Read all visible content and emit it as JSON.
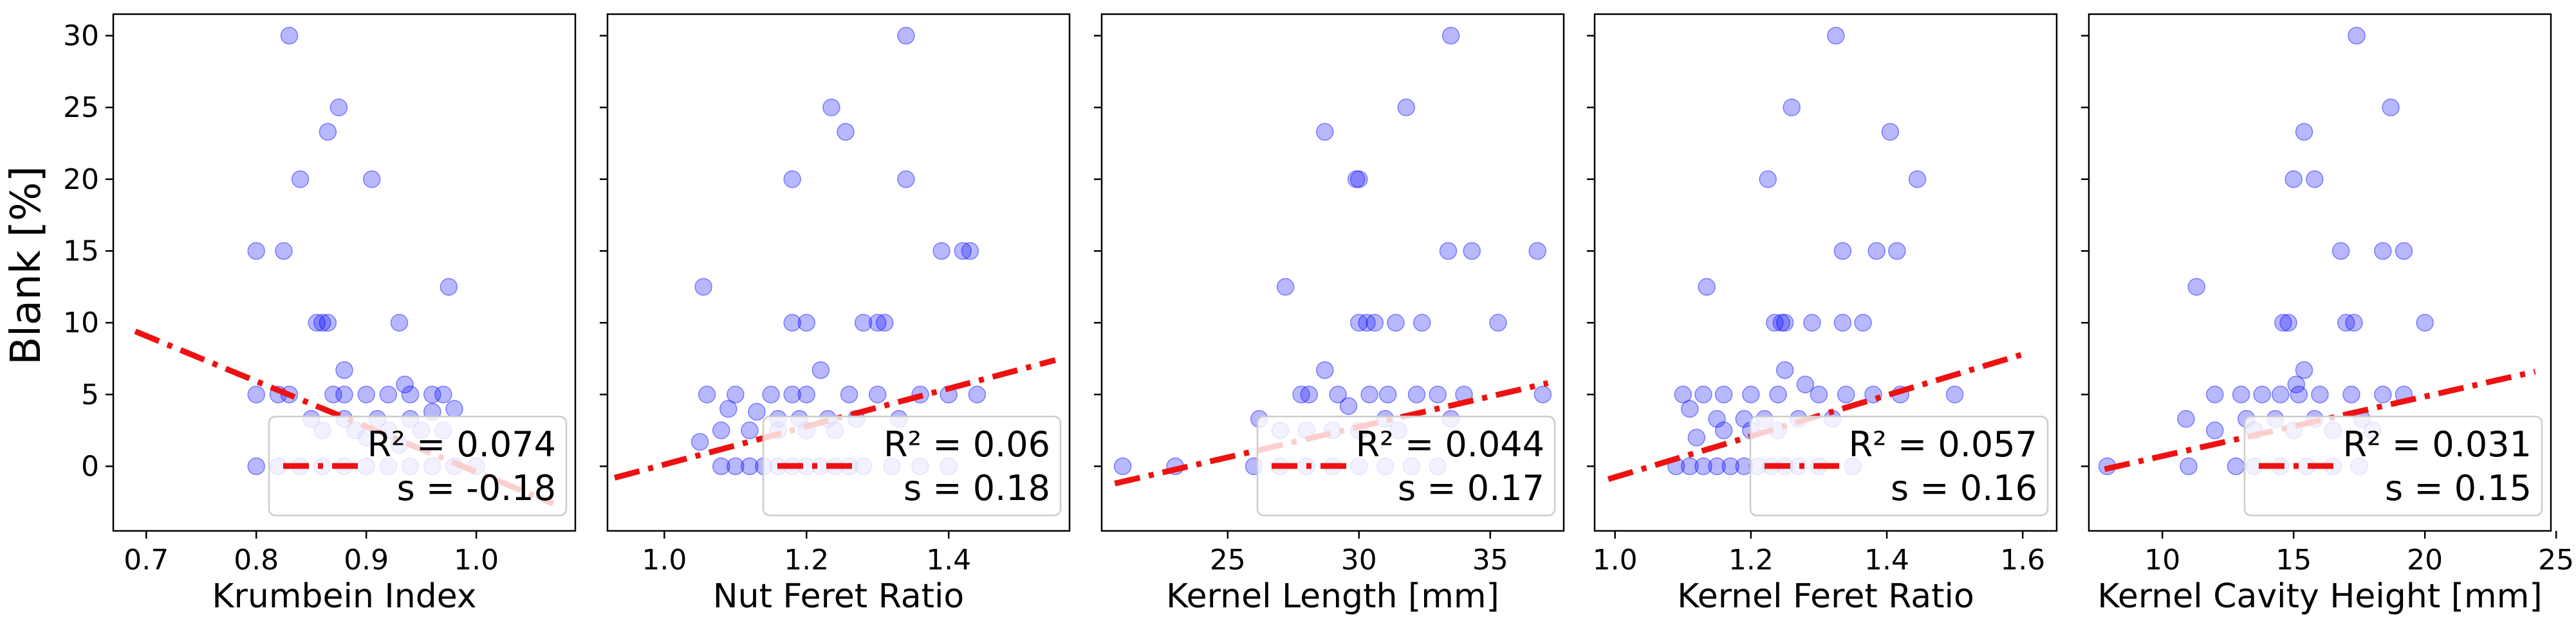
{
  "chart_data": [
    {
      "type": "scatter",
      "xlabel": "Krumbein Index",
      "ylabel": "Blank [%]",
      "xlim": [
        0.67,
        1.09
      ],
      "ylim": [
        -4.5,
        31.5
      ],
      "xticks": [
        0.7,
        0.8,
        0.9,
        1.0
      ],
      "xtick_labels": [
        "0.7",
        "0.8",
        "0.9",
        "1.0"
      ],
      "yticks": [
        0,
        5,
        10,
        15,
        20,
        25,
        30
      ],
      "ytick_labels": [
        "0",
        "5",
        "10",
        "15",
        "20",
        "25",
        "30"
      ],
      "points": [
        [
          0.83,
          30
        ],
        [
          0.875,
          25
        ],
        [
          0.865,
          23.3
        ],
        [
          0.84,
          20
        ],
        [
          0.905,
          20
        ],
        [
          0.8,
          15
        ],
        [
          0.825,
          15
        ],
        [
          0.975,
          12.5
        ],
        [
          0.855,
          10
        ],
        [
          0.86,
          10
        ],
        [
          0.865,
          10
        ],
        [
          0.93,
          10
        ],
        [
          0.88,
          6.7
        ],
        [
          0.8,
          5
        ],
        [
          0.82,
          5
        ],
        [
          0.83,
          5
        ],
        [
          0.87,
          5
        ],
        [
          0.88,
          5
        ],
        [
          0.9,
          5
        ],
        [
          0.92,
          5
        ],
        [
          0.94,
          5
        ],
        [
          0.96,
          5
        ],
        [
          0.97,
          5
        ],
        [
          0.935,
          5.7
        ],
        [
          0.85,
          3.3
        ],
        [
          0.88,
          3.3
        ],
        [
          0.91,
          3.3
        ],
        [
          0.94,
          3.3
        ],
        [
          0.96,
          3.8
        ],
        [
          0.98,
          4
        ],
        [
          0.86,
          2.5
        ],
        [
          0.89,
          2.5
        ],
        [
          0.92,
          2.5
        ],
        [
          0.95,
          2.5
        ],
        [
          0.97,
          2.5
        ],
        [
          0.9,
          2
        ],
        [
          0.93,
          1.5
        ],
        [
          0.8,
          0
        ],
        [
          0.82,
          0
        ],
        [
          0.84,
          0
        ],
        [
          0.86,
          0
        ],
        [
          0.88,
          0
        ],
        [
          0.9,
          0
        ],
        [
          0.92,
          0
        ],
        [
          0.94,
          0
        ],
        [
          0.96,
          0
        ],
        [
          0.98,
          0
        ],
        [
          1.0,
          0
        ]
      ],
      "fit_line": {
        "x": [
          0.69,
          1.07
        ],
        "y": [
          9.4,
          -2.6
        ]
      },
      "legend": {
        "r2": "R² = 0.074",
        "s": "s   = -0.18",
        "placement": "lower-right"
      }
    },
    {
      "type": "scatter",
      "xlabel": "Nut Feret Ratio",
      "ylabel": "",
      "xlim": [
        0.92,
        1.57
      ],
      "ylim": [
        -4.5,
        31.5
      ],
      "xticks": [
        1.0,
        1.2,
        1.4
      ],
      "xtick_labels": [
        "1.0",
        "1.2",
        "1.4"
      ],
      "yticks": [
        0,
        5,
        10,
        15,
        20,
        25,
        30
      ],
      "ytick_labels": [],
      "points": [
        [
          1.34,
          30
        ],
        [
          1.235,
          25
        ],
        [
          1.255,
          23.3
        ],
        [
          1.18,
          20
        ],
        [
          1.34,
          20
        ],
        [
          1.39,
          15
        ],
        [
          1.42,
          15
        ],
        [
          1.43,
          15
        ],
        [
          1.055,
          12.5
        ],
        [
          1.18,
          10
        ],
        [
          1.2,
          10
        ],
        [
          1.28,
          10
        ],
        [
          1.3,
          10
        ],
        [
          1.31,
          10
        ],
        [
          1.22,
          6.7
        ],
        [
          1.06,
          5
        ],
        [
          1.1,
          5
        ],
        [
          1.15,
          5
        ],
        [
          1.18,
          5
        ],
        [
          1.2,
          5
        ],
        [
          1.26,
          5
        ],
        [
          1.3,
          5
        ],
        [
          1.36,
          5
        ],
        [
          1.4,
          5
        ],
        [
          1.44,
          5
        ],
        [
          1.09,
          4
        ],
        [
          1.13,
          3.8
        ],
        [
          1.16,
          3.3
        ],
        [
          1.19,
          3.3
        ],
        [
          1.23,
          3.3
        ],
        [
          1.27,
          3.3
        ],
        [
          1.33,
          3.3
        ],
        [
          1.08,
          2.5
        ],
        [
          1.12,
          2.5
        ],
        [
          1.16,
          2.5
        ],
        [
          1.2,
          2.5
        ],
        [
          1.24,
          2.5
        ],
        [
          1.05,
          1.7
        ],
        [
          1.08,
          0
        ],
        [
          1.1,
          0
        ],
        [
          1.12,
          0
        ],
        [
          1.14,
          0
        ],
        [
          1.16,
          0
        ],
        [
          1.18,
          0
        ],
        [
          1.2,
          0
        ],
        [
          1.22,
          0
        ],
        [
          1.24,
          0
        ],
        [
          1.26,
          0
        ],
        [
          1.28,
          0
        ],
        [
          1.32,
          0
        ],
        [
          1.36,
          0
        ],
        [
          1.4,
          0
        ]
      ],
      "fit_line": {
        "x": [
          0.93,
          1.55
        ],
        "y": [
          -0.8,
          7.4
        ]
      },
      "legend": {
        "r2": "R² = 0.06",
        "s": "s   = 0.18",
        "placement": "lower-right"
      }
    },
    {
      "type": "scatter",
      "xlabel": "Kernel Length [mm]",
      "ylabel": "",
      "xlim": [
        20.2,
        37.8
      ],
      "ylim": [
        -4.5,
        31.5
      ],
      "xticks": [
        25,
        30,
        35
      ],
      "xtick_labels": [
        "25",
        "30",
        "35"
      ],
      "yticks": [
        0,
        5,
        10,
        15,
        20,
        25,
        30
      ],
      "ytick_labels": [],
      "points": [
        [
          33.5,
          30
        ],
        [
          31.8,
          25
        ],
        [
          28.7,
          23.3
        ],
        [
          29.9,
          20
        ],
        [
          30.0,
          20
        ],
        [
          33.4,
          15
        ],
        [
          34.3,
          15
        ],
        [
          36.8,
          15
        ],
        [
          27.2,
          12.5
        ],
        [
          30.0,
          10
        ],
        [
          30.3,
          10
        ],
        [
          30.6,
          10
        ],
        [
          31.4,
          10
        ],
        [
          32.4,
          10
        ],
        [
          35.3,
          10
        ],
        [
          28.7,
          6.7
        ],
        [
          27.8,
          5
        ],
        [
          28.1,
          5
        ],
        [
          29.2,
          5
        ],
        [
          30.4,
          5
        ],
        [
          31.1,
          5
        ],
        [
          32.2,
          5
        ],
        [
          33.0,
          5
        ],
        [
          34.0,
          5
        ],
        [
          37.0,
          5
        ],
        [
          29.6,
          4.2
        ],
        [
          31.0,
          3.3
        ],
        [
          33.5,
          3.3
        ],
        [
          26.2,
          3.3
        ],
        [
          27.0,
          2.5
        ],
        [
          28.0,
          2.5
        ],
        [
          29.0,
          2.5
        ],
        [
          30.0,
          2.5
        ],
        [
          31.5,
          2.5
        ],
        [
          21.0,
          0
        ],
        [
          23.0,
          0
        ],
        [
          26.0,
          0
        ],
        [
          27.0,
          0
        ],
        [
          28.0,
          0
        ],
        [
          29.0,
          0
        ],
        [
          30.0,
          0
        ],
        [
          31.0,
          0
        ],
        [
          32.0,
          0
        ],
        [
          33.0,
          0
        ]
      ],
      "fit_line": {
        "x": [
          20.7,
          37.2
        ],
        "y": [
          -1.2,
          5.8
        ]
      },
      "legend": {
        "r2": "R² = 0.044",
        "s": "s   = 0.17",
        "placement": "lower-right"
      }
    },
    {
      "type": "scatter",
      "xlabel": "Kernel Feret Ratio",
      "ylabel": "",
      "xlim": [
        0.97,
        1.65
      ],
      "ylim": [
        -4.5,
        31.5
      ],
      "xticks": [
        1.0,
        1.2,
        1.4,
        1.6
      ],
      "xtick_labels": [
        "1.0",
        "1.2",
        "1.4",
        "1.6"
      ],
      "yticks": [
        0,
        5,
        10,
        15,
        20,
        25,
        30
      ],
      "ytick_labels": [],
      "points": [
        [
          1.325,
          30
        ],
        [
          1.26,
          25
        ],
        [
          1.405,
          23.3
        ],
        [
          1.225,
          20
        ],
        [
          1.445,
          20
        ],
        [
          1.335,
          15
        ],
        [
          1.385,
          15
        ],
        [
          1.415,
          15
        ],
        [
          1.135,
          12.5
        ],
        [
          1.235,
          10
        ],
        [
          1.245,
          10
        ],
        [
          1.25,
          10
        ],
        [
          1.29,
          10
        ],
        [
          1.335,
          10
        ],
        [
          1.365,
          10
        ],
        [
          1.25,
          6.7
        ],
        [
          1.1,
          5
        ],
        [
          1.13,
          5
        ],
        [
          1.16,
          5
        ],
        [
          1.2,
          5
        ],
        [
          1.24,
          5
        ],
        [
          1.3,
          5
        ],
        [
          1.34,
          5
        ],
        [
          1.38,
          5
        ],
        [
          1.42,
          5
        ],
        [
          1.5,
          5
        ],
        [
          1.28,
          5.7
        ],
        [
          1.11,
          4
        ],
        [
          1.15,
          3.3
        ],
        [
          1.19,
          3.3
        ],
        [
          1.22,
          3.3
        ],
        [
          1.27,
          3.3
        ],
        [
          1.32,
          3.3
        ],
        [
          1.12,
          2
        ],
        [
          1.16,
          2.5
        ],
        [
          1.2,
          2.5
        ],
        [
          1.24,
          2.5
        ],
        [
          1.09,
          0
        ],
        [
          1.11,
          0
        ],
        [
          1.13,
          0
        ],
        [
          1.15,
          0
        ],
        [
          1.17,
          0
        ],
        [
          1.19,
          0
        ],
        [
          1.21,
          0
        ],
        [
          1.23,
          0
        ],
        [
          1.25,
          0
        ],
        [
          1.27,
          0
        ],
        [
          1.3,
          0
        ],
        [
          1.35,
          0
        ]
      ],
      "fit_line": {
        "x": [
          0.99,
          1.6
        ],
        "y": [
          -0.9,
          7.8
        ]
      },
      "legend": {
        "r2": "R² = 0.057",
        "s": "s   = 0.16",
        "placement": "lower-right"
      }
    },
    {
      "type": "scatter",
      "xlabel": "Kernel Cavity Height [mm]",
      "ylabel": "",
      "xlim": [
        7.2,
        24.8
      ],
      "ylim": [
        -4.5,
        31.5
      ],
      "xticks": [
        10,
        15,
        20,
        25
      ],
      "xtick_labels": [
        "10",
        "15",
        "20",
        "25"
      ],
      "yticks": [
        0,
        5,
        10,
        15,
        20,
        25,
        30
      ],
      "ytick_labels": [],
      "points": [
        [
          17.4,
          30
        ],
        [
          18.7,
          25
        ],
        [
          15.4,
          23.3
        ],
        [
          15.0,
          20
        ],
        [
          15.8,
          20
        ],
        [
          16.8,
          15
        ],
        [
          18.4,
          15
        ],
        [
          19.2,
          15
        ],
        [
          11.3,
          12.5
        ],
        [
          14.6,
          10
        ],
        [
          14.8,
          10
        ],
        [
          17.0,
          10
        ],
        [
          17.3,
          10
        ],
        [
          20.0,
          10
        ],
        [
          15.4,
          6.7
        ],
        [
          12.0,
          5
        ],
        [
          13.0,
          5
        ],
        [
          13.8,
          5
        ],
        [
          14.5,
          5
        ],
        [
          15.2,
          5
        ],
        [
          16.0,
          5
        ],
        [
          17.2,
          5
        ],
        [
          18.4,
          5
        ],
        [
          19.2,
          5
        ],
        [
          15.1,
          5.7
        ],
        [
          10.9,
          3.3
        ],
        [
          13.2,
          3.3
        ],
        [
          14.3,
          3.3
        ],
        [
          15.8,
          3.3
        ],
        [
          17.6,
          3.3
        ],
        [
          12.0,
          2.5
        ],
        [
          13.5,
          2.5
        ],
        [
          15.0,
          2.5
        ],
        [
          16.5,
          2.5
        ],
        [
          18.0,
          2.5
        ],
        [
          7.9,
          0
        ],
        [
          11.0,
          0
        ],
        [
          12.8,
          0
        ],
        [
          13.5,
          0
        ],
        [
          14.5,
          0
        ],
        [
          15.5,
          0
        ],
        [
          16.5,
          0
        ],
        [
          17.5,
          0
        ]
      ],
      "fit_line": {
        "x": [
          7.8,
          24.2
        ],
        "y": [
          -0.2,
          6.6
        ]
      },
      "legend": {
        "r2": "R² = 0.031",
        "s": "s   = 0.15",
        "placement": "lower-right"
      }
    }
  ],
  "style": {
    "point_color": "#0000ff",
    "point_opacity": 0.28,
    "fit_line_color": "#ee1111",
    "legend_bg": "#ffffff",
    "legend_border": "#cccccc"
  }
}
